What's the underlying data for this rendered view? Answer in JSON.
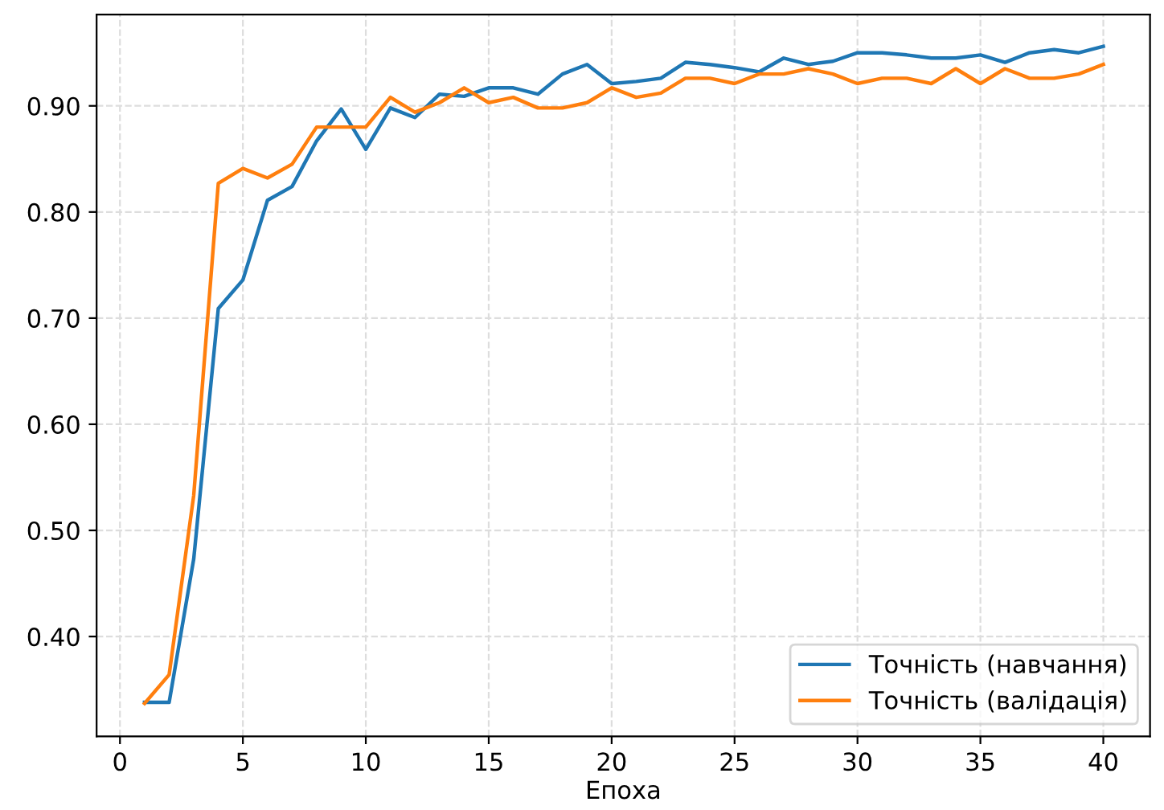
{
  "chart_data": {
    "type": "line",
    "xlabel": "Епоха",
    "x": [
      1,
      2,
      3,
      4,
      5,
      6,
      7,
      8,
      9,
      10,
      11,
      12,
      13,
      14,
      15,
      16,
      17,
      18,
      19,
      20,
      21,
      22,
      23,
      24,
      25,
      26,
      27,
      28,
      29,
      30,
      31,
      32,
      33,
      34,
      35,
      36,
      37,
      38,
      39,
      40
    ],
    "series": [
      {
        "name": "Точність (навчання)",
        "color": "#1f77b4",
        "values": [
          0.338,
          0.338,
          0.473,
          0.709,
          0.736,
          0.811,
          0.824,
          0.867,
          0.897,
          0.859,
          0.898,
          0.889,
          0.911,
          0.909,
          0.917,
          0.917,
          0.911,
          0.93,
          0.939,
          0.921,
          0.923,
          0.926,
          0.941,
          0.939,
          0.936,
          0.932,
          0.945,
          0.939,
          0.942,
          0.95,
          0.95,
          0.948,
          0.945,
          0.945,
          0.948,
          0.941,
          0.95,
          0.953,
          0.95,
          0.956
        ]
      },
      {
        "name": "Точність (валідація)",
        "color": "#ff7f0e",
        "values": [
          0.337,
          0.364,
          0.533,
          0.827,
          0.841,
          0.832,
          0.845,
          0.88,
          0.88,
          0.88,
          0.908,
          0.894,
          0.903,
          0.917,
          0.903,
          0.908,
          0.898,
          0.898,
          0.903,
          0.917,
          0.908,
          0.912,
          0.926,
          0.926,
          0.921,
          0.93,
          0.93,
          0.935,
          0.93,
          0.921,
          0.926,
          0.926,
          0.921,
          0.935,
          0.921,
          0.935,
          0.926,
          0.926,
          0.93,
          0.939
        ]
      }
    ],
    "xlim": [
      -0.95,
      41.9
    ],
    "xticks": [
      0,
      5,
      10,
      15,
      20,
      25,
      30,
      35,
      40
    ],
    "ylim": [
      0.306,
      0.986
    ],
    "yticks": [
      {
        "value": 0.4,
        "label": "0.40"
      },
      {
        "value": 0.5,
        "label": "0.50"
      },
      {
        "value": 0.6,
        "label": "0.60"
      },
      {
        "value": 0.7,
        "label": "0.70"
      },
      {
        "value": 0.8,
        "label": "0.80"
      },
      {
        "value": 0.9,
        "label": "0.90"
      }
    ],
    "grid": true,
    "legend": "bottom right",
    "marker": "none",
    "line_style": "solid"
  }
}
